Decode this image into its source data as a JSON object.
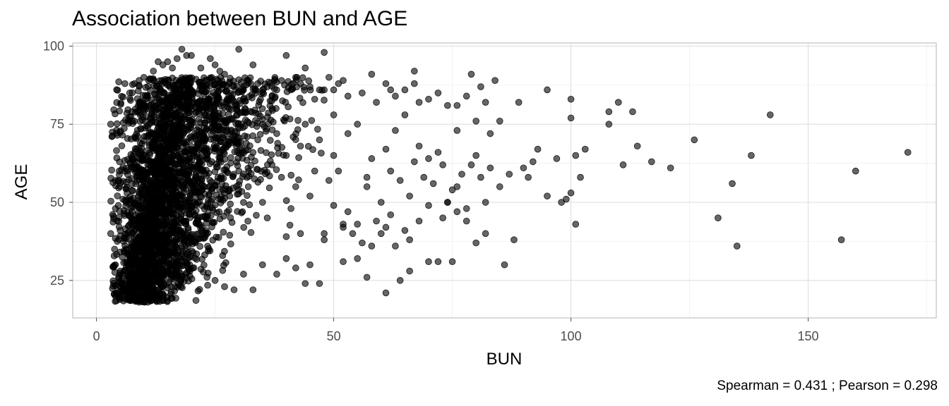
{
  "chart_data": {
    "type": "scatter",
    "title": "Association between BUN and AGE",
    "xlabel": "BUN",
    "ylabel": "AGE",
    "caption": "Spearman = 0.431 ; Pearson = 0.298",
    "xlim": [
      -5,
      177
    ],
    "ylim": [
      13,
      101
    ],
    "xticks": [
      0,
      50,
      100,
      150
    ],
    "yticks": [
      25,
      50,
      75,
      100
    ],
    "grid": true,
    "point_color": "#000000",
    "point_opacity": 0.6,
    "dense_region": {
      "note": "approximately 3000 overlapping points",
      "count": 3000
    },
    "points": [
      [
        3,
        40
      ],
      [
        3,
        75
      ],
      [
        4,
        30
      ],
      [
        4,
        48
      ],
      [
        4,
        57
      ],
      [
        5,
        41
      ],
      [
        5,
        28
      ],
      [
        4,
        20
      ],
      [
        6,
        88
      ],
      [
        7,
        85
      ],
      [
        8,
        88
      ],
      [
        9,
        89
      ],
      [
        10,
        90
      ],
      [
        11,
        89
      ],
      [
        12,
        92
      ],
      [
        13,
        95
      ],
      [
        14,
        94
      ],
      [
        15,
        95
      ],
      [
        16,
        93
      ],
      [
        17,
        96
      ],
      [
        18,
        99
      ],
      [
        19,
        97
      ],
      [
        20,
        97
      ],
      [
        22,
        93
      ],
      [
        24,
        96
      ],
      [
        25,
        94
      ],
      [
        26,
        92
      ],
      [
        27,
        91
      ],
      [
        28,
        88
      ],
      [
        30,
        99
      ],
      [
        31,
        86
      ],
      [
        32,
        89
      ],
      [
        33,
        94
      ],
      [
        34,
        88
      ],
      [
        35,
        86
      ],
      [
        36,
        87
      ],
      [
        37,
        84
      ],
      [
        38,
        86
      ],
      [
        39,
        89
      ],
      [
        40,
        97
      ],
      [
        41,
        86
      ],
      [
        42,
        90
      ],
      [
        43,
        88
      ],
      [
        44,
        93
      ],
      [
        45,
        87
      ],
      [
        46,
        83
      ],
      [
        47,
        86
      ],
      [
        48,
        98
      ],
      [
        48,
        86
      ],
      [
        49,
        90
      ],
      [
        50,
        86
      ],
      [
        51,
        88
      ],
      [
        52,
        89
      ],
      [
        53,
        84
      ],
      [
        56,
        85
      ],
      [
        58,
        91
      ],
      [
        61,
        88
      ],
      [
        62,
        86
      ],
      [
        63,
        84
      ],
      [
        65,
        86
      ],
      [
        67,
        92
      ],
      [
        67,
        88
      ],
      [
        68,
        82
      ],
      [
        70,
        83
      ],
      [
        72,
        85
      ],
      [
        74,
        81
      ],
      [
        76,
        81
      ],
      [
        78,
        84
      ],
      [
        79,
        91
      ],
      [
        80,
        76
      ],
      [
        81,
        87
      ],
      [
        82,
        82
      ],
      [
        83,
        72
      ],
      [
        84,
        89
      ],
      [
        85,
        76
      ],
      [
        89,
        82
      ],
      [
        95,
        86
      ],
      [
        100,
        83
      ],
      [
        100,
        77
      ],
      [
        108,
        79
      ],
      [
        110,
        82
      ],
      [
        113,
        79
      ],
      [
        30,
        60
      ],
      [
        32,
        55
      ],
      [
        34,
        70
      ],
      [
        35,
        50
      ],
      [
        36,
        45
      ],
      [
        37,
        62
      ],
      [
        38,
        72
      ],
      [
        39,
        58
      ],
      [
        40,
        65
      ],
      [
        41,
        48
      ],
      [
        42,
        55
      ],
      [
        43,
        68
      ],
      [
        44,
        75
      ],
      [
        45,
        52
      ],
      [
        46,
        60
      ],
      [
        47,
        70
      ],
      [
        48,
        40
      ],
      [
        49,
        57
      ],
      [
        50,
        78
      ],
      [
        50,
        65
      ],
      [
        51,
        60
      ],
      [
        52,
        43
      ],
      [
        53,
        72
      ],
      [
        54,
        40
      ],
      [
        55,
        75
      ],
      [
        56,
        37
      ],
      [
        57,
        58
      ],
      [
        58,
        64
      ],
      [
        59,
        82
      ],
      [
        60,
        50
      ],
      [
        61,
        67
      ],
      [
        62,
        60
      ],
      [
        63,
        73
      ],
      [
        64,
        57
      ],
      [
        65,
        78
      ],
      [
        66,
        52
      ],
      [
        67,
        63
      ],
      [
        68,
        68
      ],
      [
        69,
        58
      ],
      [
        70,
        64
      ],
      [
        71,
        56
      ],
      [
        72,
        66
      ],
      [
        73,
        62
      ],
      [
        74,
        50
      ],
      [
        75,
        54
      ],
      [
        76,
        73
      ],
      [
        77,
        59
      ],
      [
        78,
        48
      ],
      [
        79,
        62
      ],
      [
        80,
        65
      ],
      [
        81,
        58
      ],
      [
        82,
        50
      ],
      [
        83,
        61
      ],
      [
        85,
        55
      ],
      [
        87,
        59
      ],
      [
        88,
        38
      ],
      [
        90,
        61
      ],
      [
        91,
        58
      ],
      [
        92,
        63
      ],
      [
        93,
        67
      ],
      [
        95,
        52
      ],
      [
        97,
        64
      ],
      [
        98,
        50
      ],
      [
        99,
        51
      ],
      [
        100,
        53
      ],
      [
        101,
        65
      ],
      [
        101,
        43
      ],
      [
        102,
        58
      ],
      [
        103,
        67
      ],
      [
        108,
        75
      ],
      [
        111,
        62
      ],
      [
        114,
        68
      ],
      [
        117,
        63
      ],
      [
        121,
        61
      ],
      [
        126,
        70
      ],
      [
        131,
        45
      ],
      [
        134,
        56
      ],
      [
        135,
        36
      ],
      [
        138,
        65
      ],
      [
        142,
        78
      ],
      [
        157,
        38
      ],
      [
        160,
        60
      ],
      [
        171,
        66
      ],
      [
        25,
        25
      ],
      [
        27,
        23
      ],
      [
        29,
        22
      ],
      [
        31,
        27
      ],
      [
        33,
        22
      ],
      [
        35,
        30
      ],
      [
        38,
        27
      ],
      [
        40,
        32
      ],
      [
        42,
        29
      ],
      [
        44,
        24
      ],
      [
        45,
        30
      ],
      [
        47,
        24
      ],
      [
        52,
        31
      ],
      [
        55,
        32
      ],
      [
        57,
        26
      ],
      [
        61,
        21
      ],
      [
        64,
        25
      ],
      [
        66,
        28
      ],
      [
        70,
        31
      ],
      [
        72,
        31
      ],
      [
        75,
        31
      ],
      [
        86,
        30
      ],
      [
        40,
        39
      ],
      [
        43,
        40
      ],
      [
        48,
        38
      ],
      [
        52,
        42
      ],
      [
        55,
        43
      ],
      [
        58,
        36
      ],
      [
        60,
        40
      ],
      [
        62,
        46
      ],
      [
        65,
        41
      ],
      [
        68,
        44
      ],
      [
        70,
        49
      ],
      [
        73,
        45
      ],
      [
        76,
        47
      ],
      [
        78,
        44
      ],
      [
        80,
        37
      ],
      [
        82,
        40
      ],
      [
        74,
        50
      ],
      [
        76,
        55
      ],
      [
        61,
        42
      ],
      [
        63,
        36
      ],
      [
        66,
        38
      ],
      [
        50,
        49
      ],
      [
        53,
        47
      ],
      [
        57,
        55
      ],
      [
        59,
        44
      ]
    ]
  }
}
